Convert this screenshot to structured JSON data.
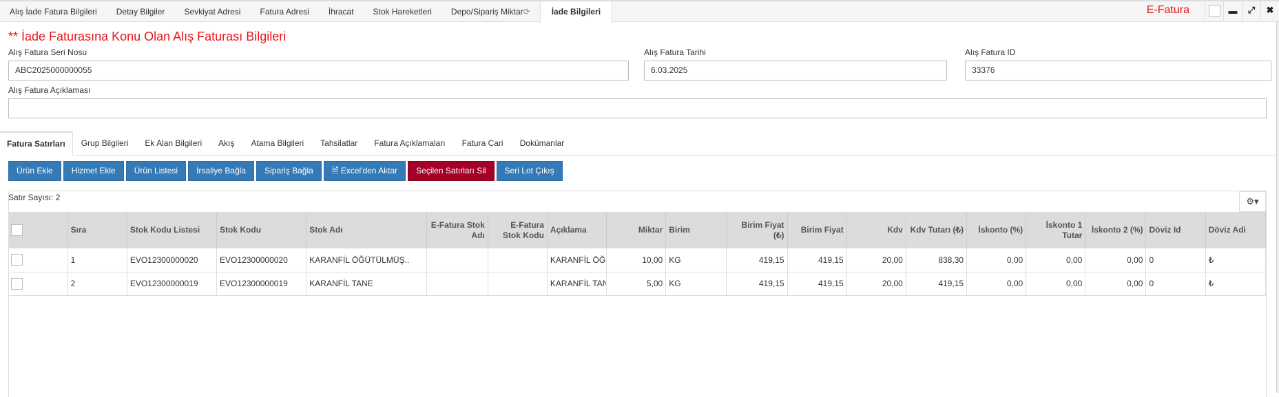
{
  "top_tabs": [
    "Alış İade Fatura Bilgileri",
    "Detay Bilgiler",
    "Sevkiyat Adresi",
    "Fatura Adresi",
    "İhracat",
    "Stok Hareketleri",
    "Depo/Sipariş Miktar",
    "İade Bilgileri"
  ],
  "window": {
    "title": "E-Fatura",
    "title_color": "#e8151b"
  },
  "section_title": "** İade Faturasına Konu Olan Alış Faturası Bilgileri",
  "fields": {
    "seri_no": {
      "label": "Alış Fatura Seri Nosu",
      "value": "ABC2025000000055"
    },
    "tarih": {
      "label": "Alış Fatura Tarihi",
      "value": "6.03.2025"
    },
    "id": {
      "label": "Alış Fatura ID",
      "value": "33376"
    },
    "aciklama": {
      "label": "Alış Fatura Açıklaması",
      "value": ""
    }
  },
  "inner_tabs": [
    "Fatura Satırları",
    "Grup Bilgileri",
    "Ek Alan Bilgileri",
    "Akış",
    "Atama Bilgileri",
    "Tahsilatlar",
    "Fatura Açıklamaları",
    "Fatura Cari",
    "Dokümanlar"
  ],
  "buttons": [
    "Ürün Ekle",
    "Hizmet Ekle",
    "Ürün Listesi",
    "İrsaliye Bağla",
    "Sipariş Bağla",
    "Excel'den Aktar",
    "Seçilen Satırları Sil",
    "Seri Lot Çıkış"
  ],
  "colors": {
    "primary": "#337ab7",
    "danger": "#a50026"
  },
  "grid": {
    "row_count": "Satır Sayısı: 2",
    "columns": [
      "Sıra",
      "Stok Kodu Listesi",
      "Stok Kodu",
      "Stok Adı",
      "E-Fatura Stok Adı",
      "E-Fatura Stok Kodu",
      "Açıklama",
      "Miktar",
      "Birim",
      "Birim Fiyat (₺)",
      "Birim Fiyat",
      "Kdv",
      "Kdv Tutarı (₺)",
      "İskonto (%)",
      "İskonto 1 Tutar",
      "İskonto 2 (%)",
      "Döviz Id",
      "Döviz Adi"
    ],
    "rows": [
      [
        "1",
        "EVO12300000020",
        "EVO12300000020",
        "KARANFİL ÖĞÜTÜLMÜŞ..",
        "",
        "",
        "KARANFİL ÖĞÜTÜLMÜŞ",
        "10,00",
        "KG",
        "419,15",
        "419,15",
        "20,00",
        "838,30",
        "0,00",
        "0,00",
        "0,00",
        "0",
        "₺"
      ],
      [
        "2",
        "EVO12300000019",
        "EVO12300000019",
        "KARANFİL TANE",
        "",
        "",
        "KARANFİL TANE",
        "5,00",
        "KG",
        "419,15",
        "419,15",
        "20,00",
        "419,15",
        "0,00",
        "0,00",
        "0,00",
        "0",
        "₺"
      ]
    ]
  }
}
